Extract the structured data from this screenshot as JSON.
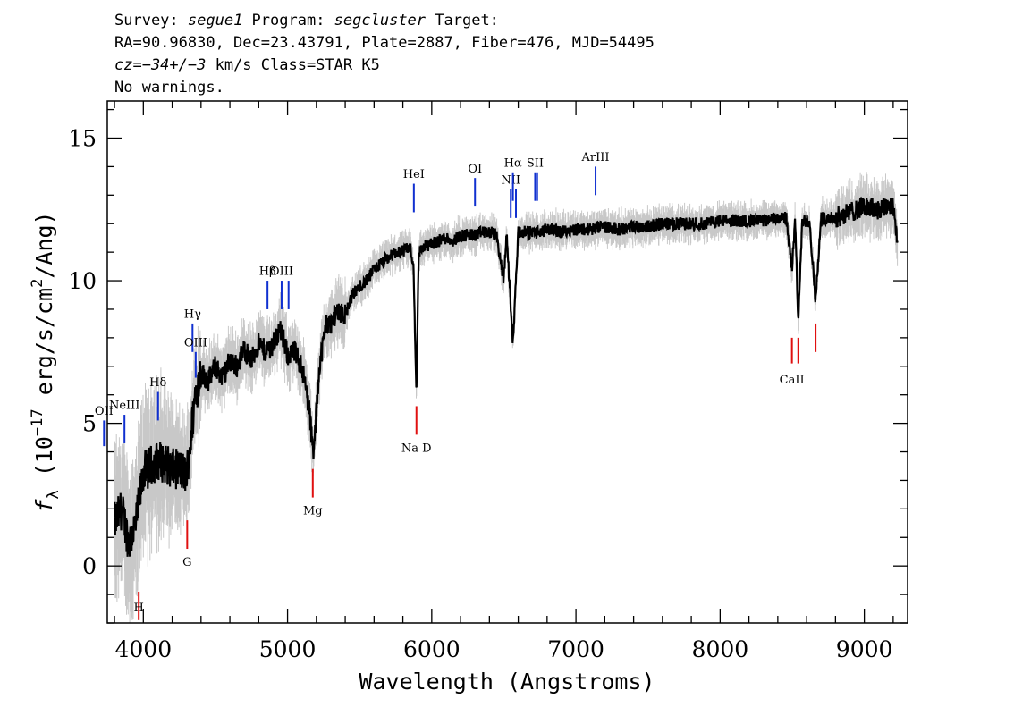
{
  "header": {
    "line1": {
      "survey_label": "Survey: ",
      "survey": "segue1",
      "program_label": " Program: ",
      "program": "segcluster",
      "target_label": " Target:"
    },
    "line2": "RA=90.96830, Dec=23.43791, Plate=2887, Fiber=476, MJD=54495",
    "line3": {
      "cz": "cz=−34+/−3",
      "rest": " km/s Class=STAR K5"
    },
    "line4": "No warnings."
  },
  "chart_data": {
    "type": "line",
    "xlabel": "Wavelength (Angstroms)",
    "ylabel_parts": {
      "f": "f",
      "sub": "λ",
      "pre": " (10",
      "sup": "−17",
      "mid": " erg/s/cm",
      "sup2": "2",
      "post": "/Ang)"
    },
    "xlim": [
      3750,
      9300
    ],
    "ylim": [
      -2,
      16.3
    ],
    "xticks": [
      4000,
      5000,
      6000,
      7000,
      8000,
      9000
    ],
    "yticks": [
      0,
      5,
      10,
      15
    ],
    "xtick_labels": [
      "4000",
      "5000",
      "6000",
      "7000",
      "8000",
      "9000"
    ],
    "ytick_labels": [
      "0",
      "5",
      "10",
      "15"
    ],
    "series_color": "#000000",
    "error_color": "#c8c8c8",
    "continuum": [
      [
        3800,
        1.5
      ],
      [
        3850,
        2.0
      ],
      [
        3900,
        0.8
      ],
      [
        3950,
        1.5
      ],
      [
        4000,
        3.3
      ],
      [
        4050,
        3.5
      ],
      [
        4100,
        3.7
      ],
      [
        4150,
        3.6
      ],
      [
        4200,
        3.4
      ],
      [
        4250,
        3.4
      ],
      [
        4300,
        3.2
      ],
      [
        4330,
        4.5
      ],
      [
        4360,
        6.0
      ],
      [
        4400,
        6.8
      ],
      [
        4450,
        6.5
      ],
      [
        4500,
        7.0
      ],
      [
        4550,
        6.6
      ],
      [
        4600,
        7.2
      ],
      [
        4650,
        7.0
      ],
      [
        4700,
        7.6
      ],
      [
        4750,
        7.2
      ],
      [
        4800,
        7.8
      ],
      [
        4850,
        7.5
      ],
      [
        4900,
        7.8
      ],
      [
        4950,
        8.3
      ],
      [
        5000,
        7.4
      ],
      [
        5050,
        7.5
      ],
      [
        5100,
        7.0
      ],
      [
        5150,
        5.5
      ],
      [
        5180,
        3.8
      ],
      [
        5220,
        7.0
      ],
      [
        5270,
        8.5
      ],
      [
        5300,
        8.5
      ],
      [
        5350,
        9.0
      ],
      [
        5400,
        8.8
      ],
      [
        5450,
        9.5
      ],
      [
        5500,
        9.8
      ],
      [
        5550,
        10.0
      ],
      [
        5600,
        10.4
      ],
      [
        5650,
        10.6
      ],
      [
        5700,
        10.8
      ],
      [
        5750,
        11.0
      ],
      [
        5800,
        11.0
      ],
      [
        5850,
        11.2
      ],
      [
        5875,
        10.3
      ],
      [
        5893,
        6.0
      ],
      [
        5910,
        11.0
      ],
      [
        5950,
        11.2
      ],
      [
        6000,
        11.3
      ],
      [
        6050,
        11.4
      ],
      [
        6100,
        11.5
      ],
      [
        6150,
        11.4
      ],
      [
        6200,
        11.6
      ],
      [
        6250,
        11.6
      ],
      [
        6300,
        11.6
      ],
      [
        6350,
        11.7
      ],
      [
        6400,
        11.7
      ],
      [
        6450,
        11.6
      ],
      [
        6497,
        10.0
      ],
      [
        6520,
        11.6
      ],
      [
        6563,
        7.8
      ],
      [
        6600,
        11.7
      ],
      [
        6650,
        11.7
      ],
      [
        6700,
        11.7
      ],
      [
        6750,
        11.7
      ],
      [
        6800,
        11.8
      ],
      [
        6850,
        11.8
      ],
      [
        6900,
        11.7
      ],
      [
        6950,
        11.8
      ],
      [
        7000,
        11.8
      ],
      [
        7100,
        11.8
      ],
      [
        7200,
        11.9
      ],
      [
        7300,
        11.8
      ],
      [
        7400,
        11.9
      ],
      [
        7500,
        11.9
      ],
      [
        7600,
        12.0
      ],
      [
        7700,
        12.0
      ],
      [
        7800,
        12.0
      ],
      [
        7900,
        12.0
      ],
      [
        8000,
        12.1
      ],
      [
        8100,
        12.1
      ],
      [
        8200,
        12.1
      ],
      [
        8300,
        12.1
      ],
      [
        8400,
        12.2
      ],
      [
        8460,
        12.2
      ],
      [
        8498,
        10.4
      ],
      [
        8520,
        12.1
      ],
      [
        8542,
        8.6
      ],
      [
        8570,
        12.1
      ],
      [
        8620,
        12.1
      ],
      [
        8662,
        9.3
      ],
      [
        8700,
        12.2
      ],
      [
        8800,
        12.2
      ],
      [
        8900,
        12.4
      ],
      [
        9000,
        12.6
      ],
      [
        9100,
        12.5
      ],
      [
        9200,
        12.7
      ],
      [
        9230,
        11.3
      ]
    ],
    "emission_lines": [
      {
        "label": "OII",
        "wave": 3727,
        "y_top": 5.1,
        "y_bot": 4.2,
        "label_y": 5.3
      },
      {
        "label": "NeIII",
        "wave": 3869,
        "y_top": 5.3,
        "y_bot": 4.3,
        "label_y": 5.5
      },
      {
        "label": "Hδ",
        "wave": 4102,
        "y_top": 6.1,
        "y_bot": 5.1,
        "label_y": 6.3
      },
      {
        "label": "Hγ",
        "wave": 4341,
        "y_top": 8.5,
        "y_bot": 7.5,
        "label_y": 8.7
      },
      {
        "label": "OIII",
        "wave": 4363,
        "y_top": 7.5,
        "y_bot": 6.6,
        "label_y": 7.7
      },
      {
        "label": "Hβ",
        "wave": 4861,
        "y_top": 10.0,
        "y_bot": 9.0,
        "label_y": 10.2
      },
      {
        "label": "OIII",
        "wave": 4959,
        "y_top": 10.0,
        "y_bot": 9.0,
        "label_y": 10.2
      },
      {
        "label": "OIII",
        "wave": 5007,
        "y_top": 10.0,
        "y_bot": 9.0,
        "label_y": 10.2
      },
      {
        "label": "HeI",
        "wave": 5876,
        "y_top": 13.4,
        "y_bot": 12.4,
        "label_y": 13.6
      },
      {
        "label": "OI",
        "wave": 6300,
        "y_top": 13.6,
        "y_bot": 12.6,
        "label_y": 13.8
      },
      {
        "label": "NII",
        "wave": 6548,
        "y_top": 13.2,
        "y_bot": 12.2,
        "label_y": 13.4
      },
      {
        "label": "Hα",
        "wave": 6563,
        "y_top": 13.8,
        "y_bot": 12.8,
        "label_y": 14.0
      },
      {
        "label": "NII",
        "wave": 6584,
        "y_top": 13.2,
        "y_bot": 12.2,
        "label_y": 13.4
      },
      {
        "label": "SII",
        "wave": 6717,
        "y_top": 13.8,
        "y_bot": 12.8,
        "label_y": 14.0
      },
      {
        "label": "SII",
        "wave": 6731,
        "y_top": 13.8,
        "y_bot": 12.8,
        "label_y": 14.0
      },
      {
        "label": "ArIII",
        "wave": 7136,
        "y_top": 14.0,
        "y_bot": 13.0,
        "label_y": 14.2
      }
    ],
    "absorption_lines": [
      {
        "label": "H",
        "wave": 3968,
        "y_top": -0.9,
        "y_bot": -1.9,
        "label_y": -1.6
      },
      {
        "label": "G",
        "wave": 4304,
        "y_top": 1.6,
        "y_bot": 0.6,
        "label_y": 0.0
      },
      {
        "label": "Mg",
        "wave": 5175,
        "y_top": 3.4,
        "y_bot": 2.4,
        "label_y": 1.8
      },
      {
        "label": "Na D",
        "wave": 5894,
        "y_top": 5.6,
        "y_bot": 4.6,
        "label_y": 4.0
      },
      {
        "label": "CaII",
        "wave": 8498,
        "y_top": 8.0,
        "y_bot": 7.1,
        "label_y": 6.4
      },
      {
        "label": "CaII",
        "wave": 8542,
        "y_top": 8.0,
        "y_bot": 7.1,
        "label_y": 6.4
      },
      {
        "label": "CaII",
        "wave": 8662,
        "y_top": 8.5,
        "y_bot": 7.5,
        "label_y": 6.4
      }
    ],
    "emission_color": "#1030d0",
    "absorption_color": "#e01010"
  }
}
